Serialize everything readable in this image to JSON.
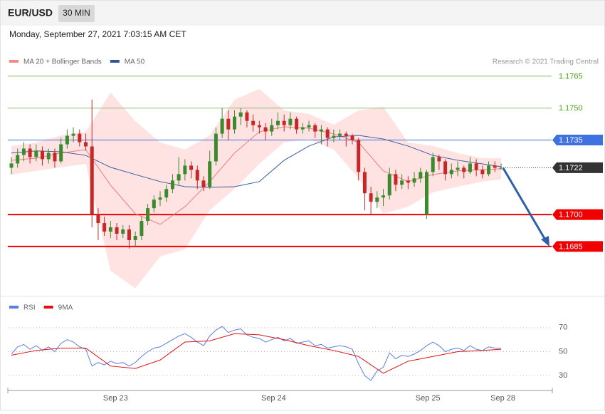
{
  "header": {
    "symbol": "EUR/USD",
    "timeframe": "30 MIN",
    "datetime": "Monday, September 27, 2021 7:03:15 AM CET"
  },
  "chart_data": [
    {
      "type": "candlestick",
      "source": "Research © 2021 Trading Central",
      "ylim": [
        1.166,
        1.177
      ],
      "xlim": [
        0,
        79
      ],
      "up_color": "#3c8a2e",
      "down_color": "#c62828",
      "candles": [
        [
          1.1722,
          1.1727,
          1.1719,
          1.1724
        ],
        [
          1.1724,
          1.1731,
          1.1722,
          1.1728
        ],
        [
          1.1728,
          1.1734,
          1.1725,
          1.1731
        ],
        [
          1.1731,
          1.1733,
          1.1724,
          1.1727
        ],
        [
          1.1727,
          1.1733,
          1.1725,
          1.173
        ],
        [
          1.173,
          1.1732,
          1.1723,
          1.1726
        ],
        [
          1.1726,
          1.1731,
          1.1724,
          1.1729
        ],
        [
          1.1729,
          1.1731,
          1.1722,
          1.1725
        ],
        [
          1.1725,
          1.1736,
          1.1724,
          1.1733
        ],
        [
          1.1733,
          1.174,
          1.1731,
          1.1737
        ],
        [
          1.1737,
          1.1741,
          1.1734,
          1.1738
        ],
        [
          1.1738,
          1.174,
          1.1732,
          1.1734
        ],
        [
          1.1734,
          1.1738,
          1.173,
          1.1732
        ],
        [
          1.1732,
          1.1754,
          1.1694,
          1.17
        ],
        [
          1.17,
          1.1703,
          1.1688,
          1.1696
        ],
        [
          1.1696,
          1.1699,
          1.169,
          1.1692
        ],
        [
          1.1692,
          1.1697,
          1.1689,
          1.1694
        ],
        [
          1.1694,
          1.1696,
          1.1688,
          1.1691
        ],
        [
          1.1691,
          1.1695,
          1.1689,
          1.1693
        ],
        [
          1.1693,
          1.1695,
          1.1684,
          1.1688
        ],
        [
          1.1688,
          1.1692,
          1.1685,
          1.169
        ],
        [
          1.169,
          1.1699,
          1.1688,
          1.1697
        ],
        [
          1.1697,
          1.1705,
          1.1695,
          1.1703
        ],
        [
          1.1703,
          1.1709,
          1.1701,
          1.1707
        ],
        [
          1.1707,
          1.1711,
          1.1704,
          1.1708
        ],
        [
          1.1708,
          1.1714,
          1.1706,
          1.1712
        ],
        [
          1.1712,
          1.1719,
          1.171,
          1.1716
        ],
        [
          1.1716,
          1.1727,
          1.1714,
          1.1719
        ],
        [
          1.1719,
          1.1726,
          1.1716,
          1.1723
        ],
        [
          1.1723,
          1.1725,
          1.1717,
          1.1721
        ],
        [
          1.1721,
          1.1723,
          1.1712,
          1.1716
        ],
        [
          1.1716,
          1.1718,
          1.1711,
          1.1713
        ],
        [
          1.1713,
          1.173,
          1.1712,
          1.1725
        ],
        [
          1.1725,
          1.1741,
          1.1723,
          1.1738
        ],
        [
          1.1738,
          1.175,
          1.1736,
          1.1745
        ],
        [
          1.1745,
          1.1749,
          1.1735,
          1.174
        ],
        [
          1.174,
          1.1749,
          1.1738,
          1.1746
        ],
        [
          1.1746,
          1.175,
          1.1742,
          1.1748
        ],
        [
          1.1748,
          1.1749,
          1.1741,
          1.1744
        ],
        [
          1.1744,
          1.1747,
          1.1739,
          1.1742
        ],
        [
          1.1742,
          1.1744,
          1.1738,
          1.1741
        ],
        [
          1.1741,
          1.1743,
          1.1735,
          1.1739
        ],
        [
          1.1739,
          1.1745,
          1.1737,
          1.1742
        ],
        [
          1.1742,
          1.1748,
          1.174,
          1.1744
        ],
        [
          1.1744,
          1.1747,
          1.1739,
          1.1742
        ],
        [
          1.1742,
          1.1748,
          1.174,
          1.1745
        ],
        [
          1.1745,
          1.1746,
          1.1738,
          1.174
        ],
        [
          1.174,
          1.1743,
          1.1738,
          1.1741
        ],
        [
          1.1741,
          1.1744,
          1.1739,
          1.1742
        ],
        [
          1.1742,
          1.1743,
          1.1736,
          1.1739
        ],
        [
          1.1739,
          1.1742,
          1.1733,
          1.174
        ],
        [
          1.174,
          1.1741,
          1.1732,
          1.1736
        ],
        [
          1.1736,
          1.174,
          1.1734,
          1.1737
        ],
        [
          1.1737,
          1.174,
          1.1735,
          1.1738
        ],
        [
          1.1738,
          1.1739,
          1.1732,
          1.1737
        ],
        [
          1.1737,
          1.1738,
          1.1733,
          1.1735
        ],
        [
          1.1735,
          1.1736,
          1.1716,
          1.172
        ],
        [
          1.172,
          1.1722,
          1.1702,
          1.171
        ],
        [
          1.171,
          1.1713,
          1.17,
          1.1706
        ],
        [
          1.1706,
          1.1711,
          1.1703,
          1.1708
        ],
        [
          1.1708,
          1.1712,
          1.1704,
          1.1709
        ],
        [
          1.1709,
          1.1722,
          1.1707,
          1.1719
        ],
        [
          1.1719,
          1.1721,
          1.1711,
          1.1714
        ],
        [
          1.1714,
          1.1719,
          1.1712,
          1.1716
        ],
        [
          1.1716,
          1.1718,
          1.1712,
          1.1715
        ],
        [
          1.1715,
          1.172,
          1.1713,
          1.1717
        ],
        [
          1.1717,
          1.1722,
          1.1715,
          1.172
        ],
        [
          1.17,
          1.1721,
          1.1698,
          1.172
        ],
        [
          1.172,
          1.1729,
          1.1718,
          1.1727
        ],
        [
          1.1727,
          1.1728,
          1.1721,
          1.1725
        ],
        [
          1.1725,
          1.1726,
          1.1716,
          1.1719
        ],
        [
          1.1719,
          1.1724,
          1.1717,
          1.1721
        ],
        [
          1.1721,
          1.1725,
          1.1718,
          1.1722
        ],
        [
          1.1722,
          1.1723,
          1.1717,
          1.172
        ],
        [
          1.172,
          1.1727,
          1.1719,
          1.1724
        ],
        [
          1.1724,
          1.1726,
          1.1718,
          1.1721
        ],
        [
          1.1721,
          1.1723,
          1.1717,
          1.1719
        ],
        [
          1.1719,
          1.1725,
          1.1718,
          1.1723
        ],
        [
          1.1723,
          1.1725,
          1.172,
          1.1722
        ],
        [
          1.1722,
          1.1724,
          1.1721,
          1.1722
        ]
      ],
      "indicator_x": [
        0,
        4,
        8,
        12,
        16,
        20,
        24,
        28,
        32,
        36,
        40,
        44,
        48,
        52,
        56,
        60,
        64,
        68,
        72,
        76,
        79
      ],
      "series": [
        {
          "name": "MA 20 + Bollinger Bands",
          "color": "#f07c7c",
          "legend_color": "#f28a8a",
          "band_color": "#ffd9d9",
          "values": [
            1.17255,
            1.17265,
            1.17289,
            1.17305,
            1.17138,
            1.17004,
            1.16954,
            1.17037,
            1.17155,
            1.17289,
            1.17389,
            1.17412,
            1.17406,
            1.17379,
            1.17339,
            1.17205,
            1.17155,
            1.17188,
            1.17205,
            1.17211,
            1.17215
          ],
          "upper": [
            1.17322,
            1.17339,
            1.17372,
            1.17389,
            1.17573,
            1.17439,
            1.17339,
            1.17305,
            1.17372,
            1.1754,
            1.1759,
            1.17489,
            1.17473,
            1.17422,
            1.17489,
            1.17506,
            1.17339,
            1.17322,
            1.17289,
            1.17265,
            1.17265
          ],
          "lower": [
            1.17188,
            1.17205,
            1.17222,
            1.17238,
            1.16736,
            1.16653,
            1.16803,
            1.16837,
            1.17021,
            1.17121,
            1.17238,
            1.17339,
            1.17355,
            1.17305,
            1.17171,
            1.17004,
            1.17037,
            1.17104,
            1.17131,
            1.17155,
            1.17165
          ]
        },
        {
          "name": "MA 50",
          "color": "#3a5c9c",
          "legend_color": "#2f5597",
          "values": [
            1.17289,
            1.17299,
            1.17295,
            1.17278,
            1.17222,
            1.17188,
            1.17155,
            1.17131,
            1.17128,
            1.17131,
            1.17155,
            1.17255,
            1.17322,
            1.17365,
            1.17372,
            1.17355,
            1.17322,
            1.17278,
            1.17255,
            1.17238,
            1.17225
          ]
        }
      ],
      "levels": [
        {
          "value": 1.1765,
          "label": "1.1765",
          "color": "#8cc06a",
          "text_color": "#4aa317",
          "box": false,
          "line": "solid"
        },
        {
          "value": 1.175,
          "label": "1.1750",
          "color": "#8cc06a",
          "text_color": "#4aa317",
          "box": false,
          "line": "solid"
        },
        {
          "value": 1.1735,
          "label": "1.1735",
          "color": "#3f72e0",
          "text_color": "#ffffff",
          "box": true,
          "line": "solid"
        },
        {
          "value": 1.1722,
          "label": "1.1722",
          "color": "#333333",
          "text_color": "#ffffff",
          "box": true,
          "line": "dotted"
        },
        {
          "value": 1.17,
          "label": "1.1700",
          "color": "#f00000",
          "text_color": "#ffffff",
          "box": true,
          "line": "solid"
        },
        {
          "value": 1.1685,
          "label": "1.1685",
          "color": "#f00000",
          "text_color": "#ffffff",
          "box": true,
          "line": "solid"
        }
      ]
    },
    {
      "type": "line",
      "ylim": [
        20,
        80
      ],
      "yticks": [
        30,
        50,
        70
      ],
      "xlim": [
        0,
        79
      ],
      "xticks": [
        {
          "value": 16.8,
          "label": "Sep 23"
        },
        {
          "value": 42.3,
          "label": "Sep 24"
        },
        {
          "value": 67.2,
          "label": "Sep 25"
        },
        {
          "value": 79.3,
          "label": "Sep 28"
        }
      ],
      "series": [
        {
          "name": "RSI",
          "color": "#5b7fe0",
          "values": [
            48,
            54,
            56,
            52,
            55,
            51,
            54,
            50,
            57,
            60,
            58,
            54,
            52,
            38,
            41,
            39,
            42,
            40,
            41,
            38,
            41,
            46,
            50,
            53,
            54,
            57,
            60,
            63,
            65,
            62,
            58,
            55,
            63,
            68,
            71,
            66,
            68,
            69,
            64,
            62,
            61,
            58,
            60,
            62,
            59,
            61,
            57,
            58,
            59,
            55,
            56,
            53,
            54,
            55,
            54,
            52,
            40,
            30,
            26,
            34,
            37,
            49,
            44,
            47,
            46,
            48,
            51,
            55,
            58,
            55,
            50,
            52,
            53,
            51,
            55,
            52,
            51,
            54,
            53,
            53
          ]
        },
        {
          "name": "9MA",
          "color": "#e01010",
          "x": [
            0,
            4,
            8,
            12,
            16,
            20,
            24,
            28,
            32,
            36,
            40,
            44,
            48,
            52,
            56,
            60,
            64,
            68,
            72,
            76,
            79
          ],
          "values": [
            47,
            51,
            53,
            53,
            38,
            36,
            43,
            58,
            59,
            65,
            64,
            60,
            55,
            51,
            46,
            32,
            42,
            46,
            50,
            51,
            52
          ]
        }
      ]
    }
  ]
}
